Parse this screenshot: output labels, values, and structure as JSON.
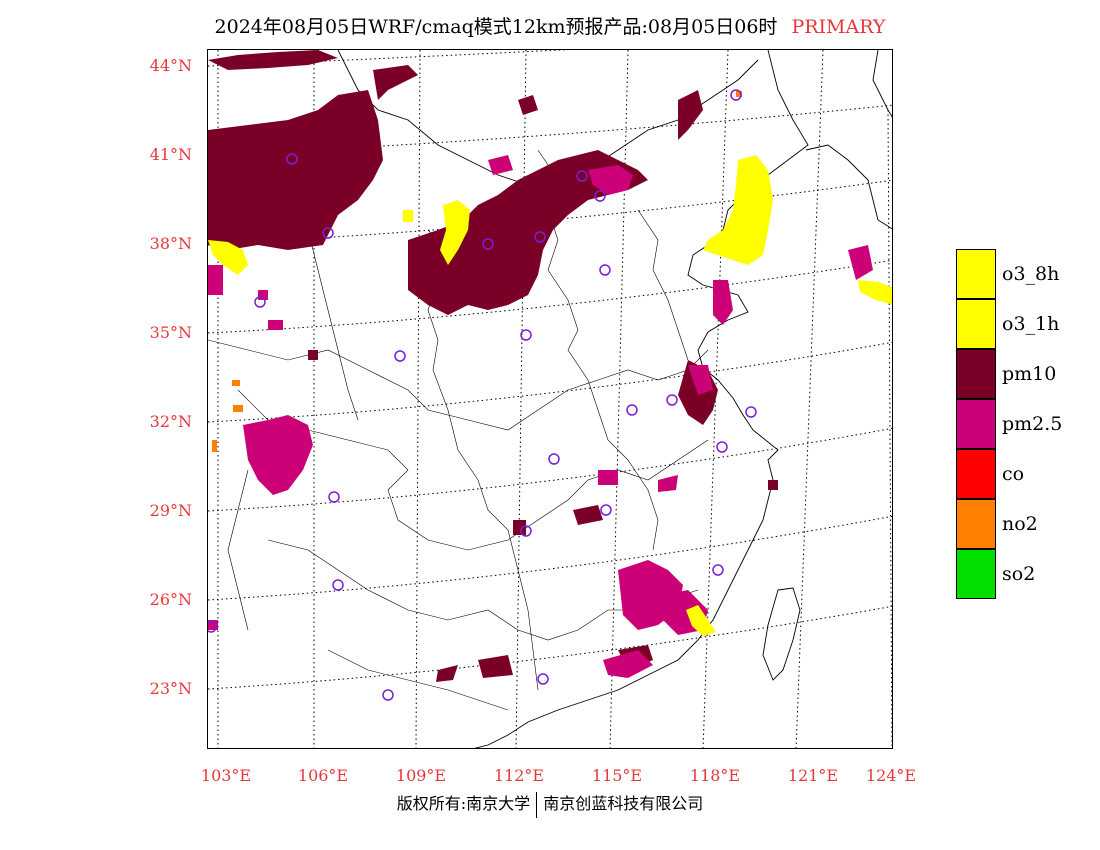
{
  "title": {
    "main": "2024年08月05日WRF/cmaq模式12km预报产品:08月05日06时",
    "tag": "PRIMARY",
    "tag_color": "#e8373b"
  },
  "lat_labels": [
    "44°N",
    "41°N",
    "38°N",
    "35°N",
    "32°N",
    "29°N",
    "26°N",
    "23°N"
  ],
  "lon_labels": [
    "103°E",
    "106°E",
    "109°E",
    "112°E",
    "115°E",
    "118°E",
    "121°E",
    "124°E"
  ],
  "legend": [
    {
      "label": "o3_8h",
      "color": "#ffff00"
    },
    {
      "label": "o3_1h",
      "color": "#ffff00"
    },
    {
      "label": "pm10",
      "color": "#7a0028"
    },
    {
      "label": "pm2.5",
      "color": "#cc0077"
    },
    {
      "label": "co",
      "color": "#ff0000"
    },
    {
      "label": "no2",
      "color": "#ff7f00"
    },
    {
      "label": "so2",
      "color": "#00e000"
    }
  ],
  "footer": {
    "left": "版权所有:南京大学",
    "right": "南京创蓝科技有限公司"
  }
}
